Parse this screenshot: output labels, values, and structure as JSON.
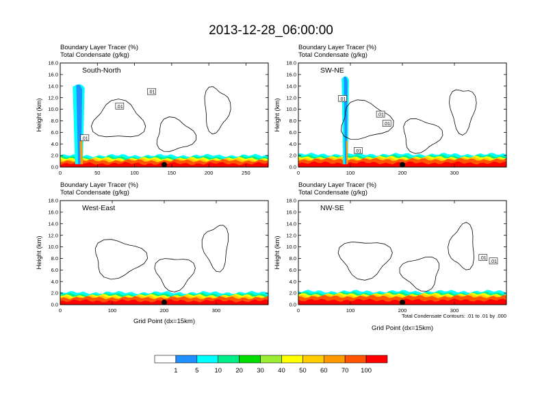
{
  "chart_data": {
    "type": "heatmap",
    "title": "2013-12-28_06:00:00",
    "field_title": "Boundary Layer Tracer",
    "field_units": "(%)",
    "contour_title": "Total Condensate",
    "contour_units": "(g/kg)",
    "contour_note": "Total Condensate Contours: .01 to .01 by .000",
    "xlabel": "Grid Point (dx=15km)",
    "ylabel": "Height (km)",
    "ylim": [
      0,
      18
    ],
    "yticks": [
      "0.0",
      "2.0",
      "4.0",
      "6.0",
      "8.0",
      "10.0",
      "12.0",
      "14.0",
      "16.0",
      "18.0"
    ],
    "colorbar": {
      "levels": [
        "1",
        "5",
        "10",
        "20",
        "30",
        "40",
        "50",
        "60",
        "70",
        "100"
      ],
      "colors": [
        "#ffffff",
        "#1e90ff",
        "#00ffff",
        "#00ee88",
        "#00dd00",
        "#99ee33",
        "#ffff00",
        "#ffcc00",
        "#ff9900",
        "#ff5500",
        "#ff0000"
      ]
    },
    "panels": [
      {
        "name": "South-North",
        "xlim": [
          0,
          280
        ],
        "xticks": [
          0,
          50,
          100,
          150,
          200,
          250
        ],
        "marker_x": 140,
        "contour_labels": [
          {
            "x": 123,
            "y": 13,
            "text": ".01"
          },
          {
            "x": 80,
            "y": 10.5,
            "text": ".01"
          },
          {
            "x": 33,
            "y": 5,
            "text": ".01"
          }
        ],
        "bl_top_km": 1.1,
        "plume": {
          "x": 28,
          "width": 8,
          "top_km": 14.6
        }
      },
      {
        "name": "SW-NE",
        "xlim": [
          0,
          400
        ],
        "xticks": [
          0,
          100,
          200,
          300
        ],
        "marker_x": 200,
        "contour_labels": [
          {
            "x": 85,
            "y": 11.8,
            "text": ".01"
          },
          {
            "x": 158,
            "y": 9.1,
            "text": ".01"
          },
          {
            "x": 170,
            "y": 7.5,
            "text": ".01"
          },
          {
            "x": 115,
            "y": 2.8,
            "text": ".01"
          }
        ],
        "bl_top_km": 1.3,
        "plume": {
          "x": 93,
          "width": 7,
          "top_km": 16.0
        }
      },
      {
        "name": "West-East",
        "xlim": [
          0,
          400
        ],
        "xticks": [
          0,
          100,
          200,
          300
        ],
        "marker_x": 200,
        "contour_labels": [],
        "bl_top_km": 1.2,
        "plume": null
      },
      {
        "name": "NW-SE",
        "xlim": [
          0,
          400
        ],
        "xticks": [
          0,
          100,
          200,
          300
        ],
        "marker_x": 200,
        "contour_labels": [
          {
            "x": 355,
            "y": 8.1,
            "text": ".01"
          },
          {
            "x": 375,
            "y": 7.5,
            "text": ".01"
          }
        ],
        "bl_top_km": 1.4,
        "plume": null
      }
    ]
  }
}
